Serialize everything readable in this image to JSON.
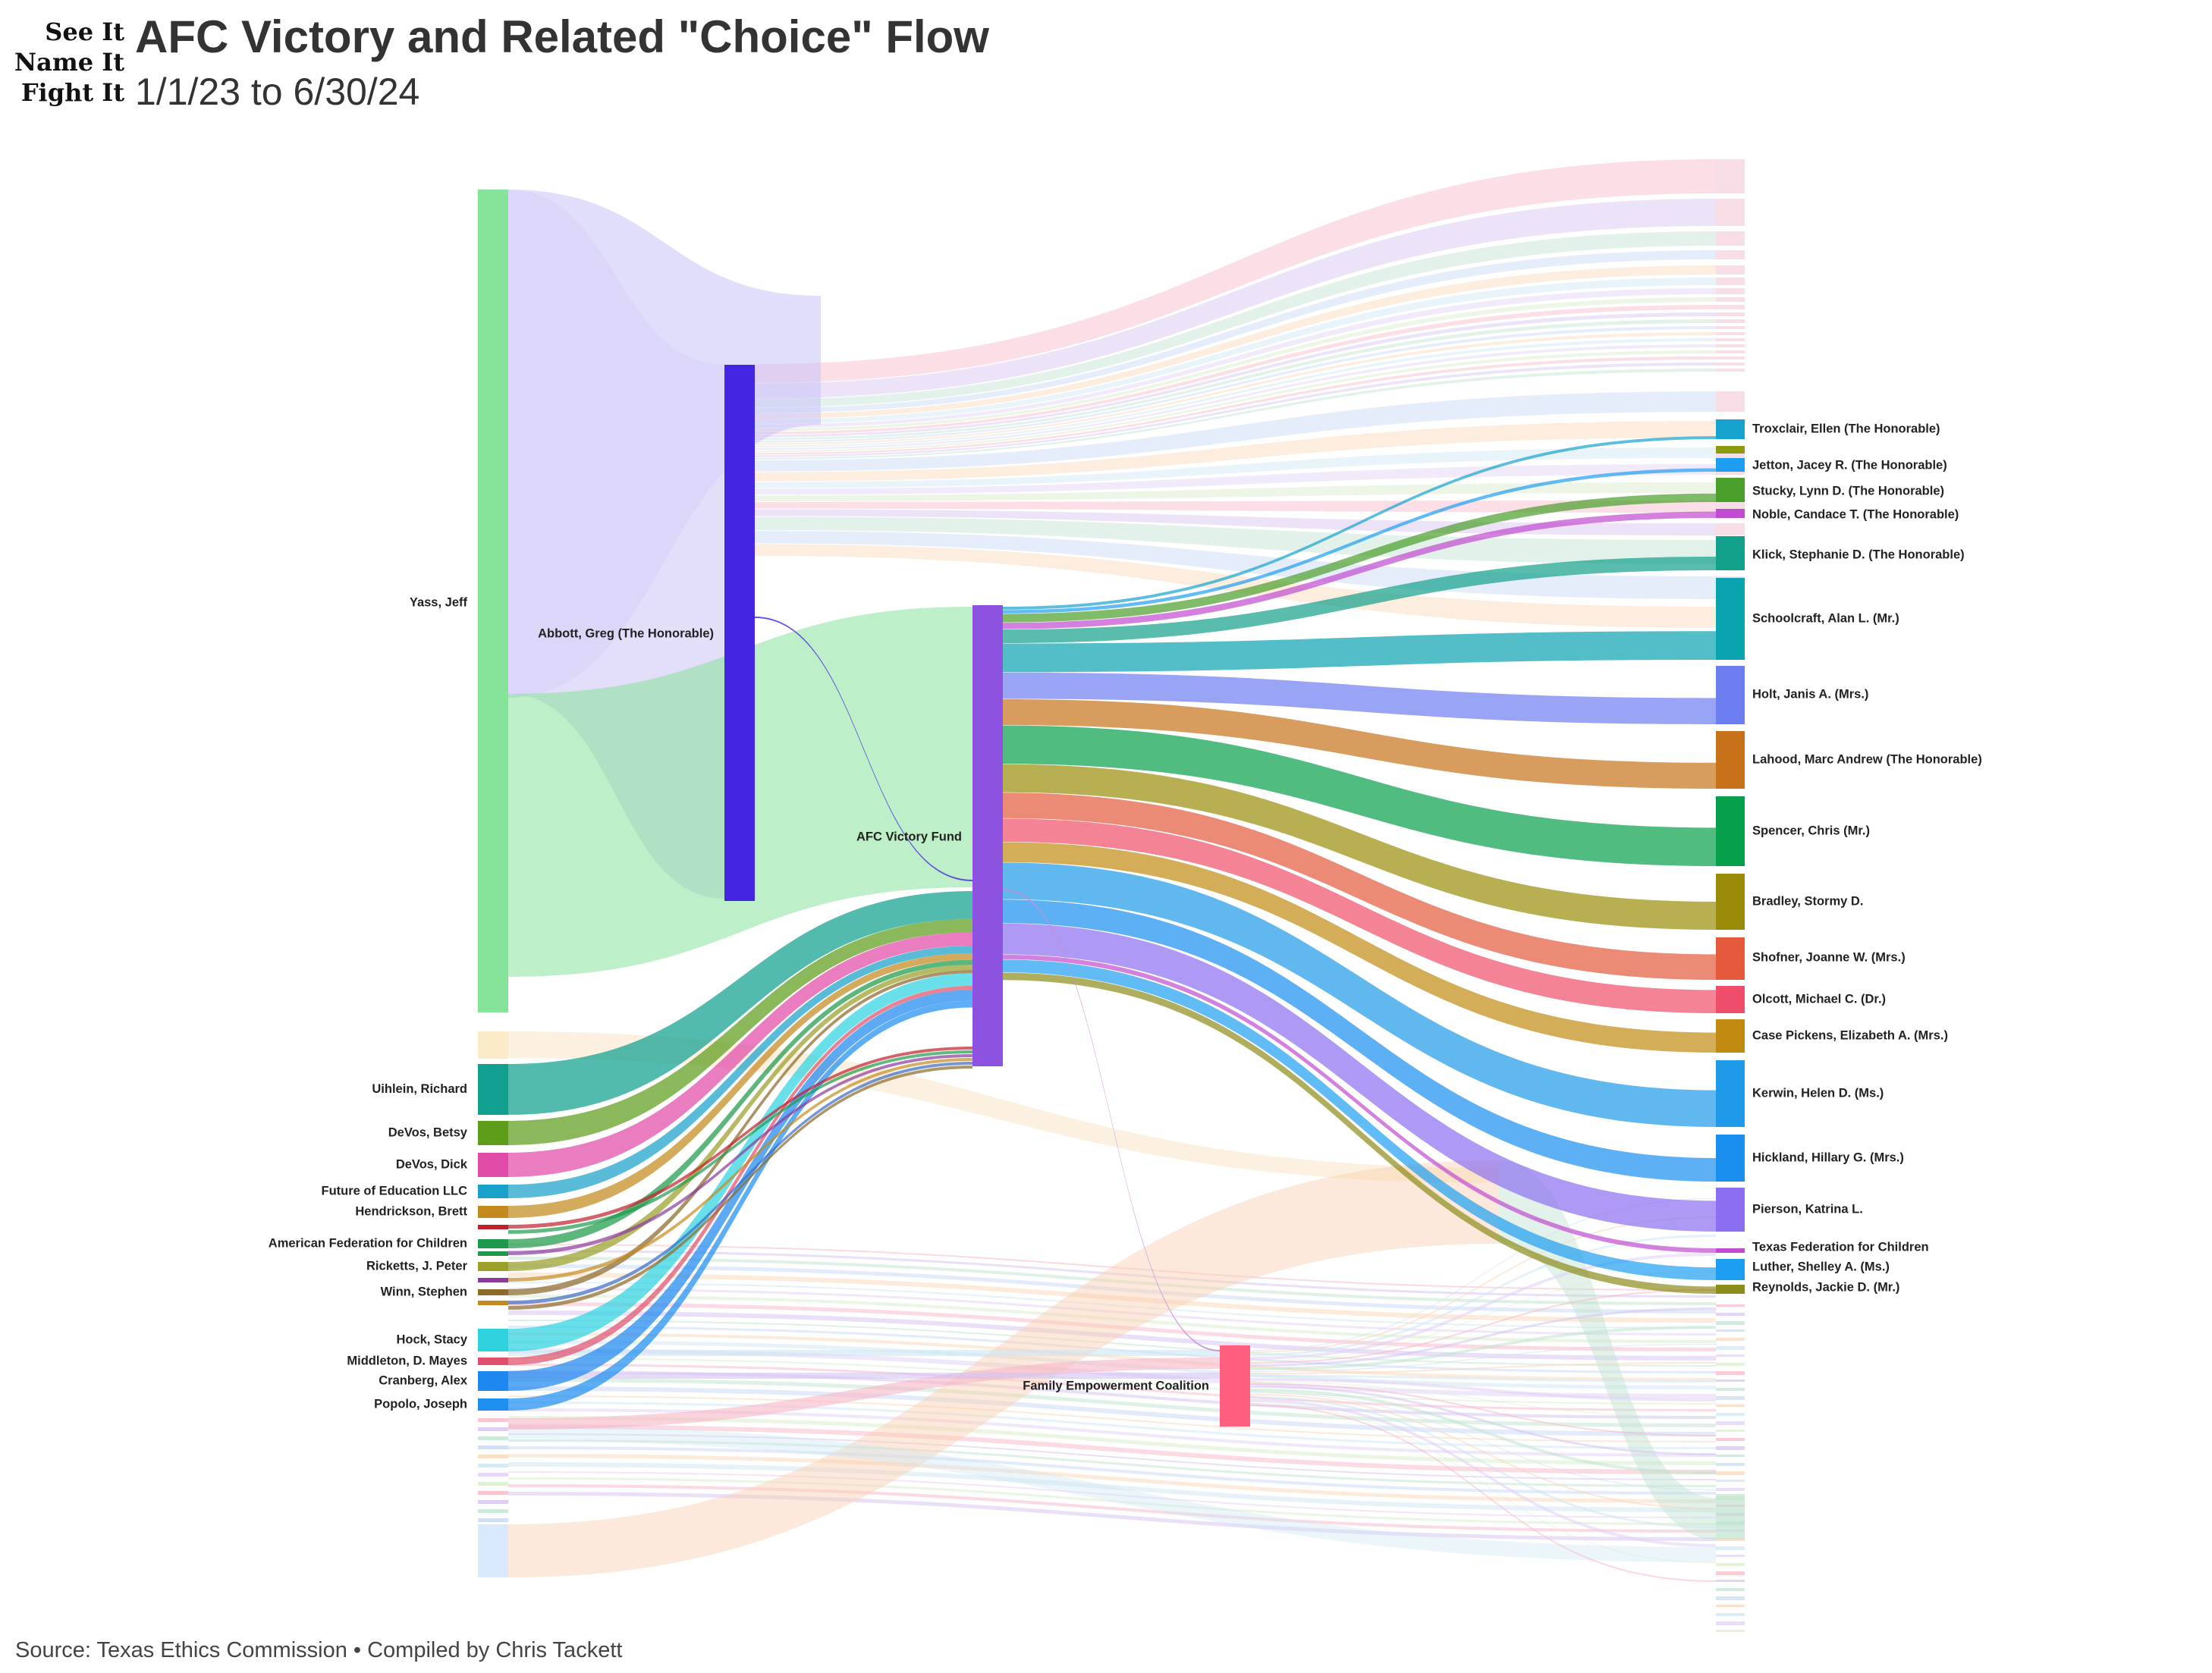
{
  "header": {
    "logo_lines": [
      "See It",
      "Name It",
      "Fight It"
    ],
    "title": "AFC Victory and Related \"Choice\" Flow",
    "subtitle": "1/1/23 to 6/30/24"
  },
  "footer": {
    "source": "Source: Texas Ethics Commission • Compiled by Chris Tackett"
  },
  "diagram": {
    "hubs": [
      {
        "id": "abbott",
        "label": "Abbott, Greg (The Honorable)",
        "color": "#4325e3"
      },
      {
        "id": "afc",
        "label": "AFC Victory Fund",
        "color": "#8e52e0"
      },
      {
        "id": "fec",
        "label": "Family Empowerment Coalition",
        "color": "#ff5f7e"
      }
    ],
    "donors": [
      {
        "id": "yass",
        "label": "Yass, Jeff",
        "color": "#86e39a"
      },
      {
        "id": "uihlein",
        "label": "Uihlein, Richard",
        "color": "#11a08f"
      },
      {
        "id": "betsy",
        "label": "DeVos, Betsy",
        "color": "#5e9d1a"
      },
      {
        "id": "dick",
        "label": "DeVos, Dick",
        "color": "#e04ba8"
      },
      {
        "id": "future",
        "label": "Future of Education LLC",
        "color": "#1aa1c9"
      },
      {
        "id": "hendrickson",
        "label": "Hendrickson, Brett",
        "color": "#c48a1e"
      },
      {
        "id": "aff",
        "label": "American Federation for Children",
        "color": "#1f9a4a"
      },
      {
        "id": "ricketts",
        "label": "Ricketts, J. Peter",
        "color": "#9aa02a"
      },
      {
        "id": "winn",
        "label": "Winn, Stephen",
        "color": "#8c6a2a"
      },
      {
        "id": "hock",
        "label": "Hock, Stacy",
        "color": "#2fd3e0"
      },
      {
        "id": "middleton",
        "label": "Middleton, D. Mayes",
        "color": "#e0506c"
      },
      {
        "id": "cranberg",
        "label": "Cranberg, Alex",
        "color": "#1e88f0"
      },
      {
        "id": "popolo",
        "label": "Popolo, Joseph",
        "color": "#1e8ff0"
      }
    ],
    "recipients": [
      {
        "id": "troxclair",
        "label": "Troxclair, Ellen (The Honorable)",
        "color": "#16a2cf"
      },
      {
        "id": "jetton",
        "label": "Jetton, Jacey R. (The Honorable)",
        "color": "#1e9ef0"
      },
      {
        "id": "stucky",
        "label": "Stucky, Lynn D. (The Honorable)",
        "color": "#4a9e2a"
      },
      {
        "id": "noble",
        "label": "Noble, Candace T. (The Honorable)",
        "color": "#c04ad0"
      },
      {
        "id": "klick",
        "label": "Klick, Stephanie D. (The Honorable)",
        "color": "#13a08a"
      },
      {
        "id": "schoolcraft",
        "label": "Schoolcraft, Alan L. (Mr.)",
        "color": "#0aa3b0"
      },
      {
        "id": "holt",
        "label": "Holt, Janis A. (Mrs.)",
        "color": "#6d7ff0"
      },
      {
        "id": "lahood",
        "label": "Lahood, Marc Andrew (The Honorable)",
        "color": "#c7721a"
      },
      {
        "id": "spencer",
        "label": "Spencer, Chris (Mr.)",
        "color": "#06a04a"
      },
      {
        "id": "bradley",
        "label": "Bradley, Stormy D.",
        "color": "#9a8c08"
      },
      {
        "id": "shofner",
        "label": "Shofner, Joanne W. (Mrs.)",
        "color": "#e45a3a"
      },
      {
        "id": "olcott",
        "label": "Olcott, Michael C. (Dr.)",
        "color": "#ef4e6a"
      },
      {
        "id": "pickens",
        "label": "Case Pickens, Elizabeth A. (Mrs.)",
        "color": "#c08a10"
      },
      {
        "id": "kerwin",
        "label": "Kerwin, Helen D. (Ms.)",
        "color": "#1e9ae8"
      },
      {
        "id": "hickland",
        "label": "Hickland, Hillary G. (Mrs.)",
        "color": "#1a8ff0"
      },
      {
        "id": "pierson",
        "label": "Pierson, Katrina L.",
        "color": "#8c6ff0"
      },
      {
        "id": "tfc",
        "label": "Texas Federation for Children",
        "color": "#c04ad0"
      },
      {
        "id": "luther",
        "label": "Luther, Shelley A. (Ms.)",
        "color": "#1e9ef0"
      },
      {
        "id": "reynolds",
        "label": "Reynolds, Jackie D. (Mr.)",
        "color": "#8c8c1a"
      }
    ]
  }
}
